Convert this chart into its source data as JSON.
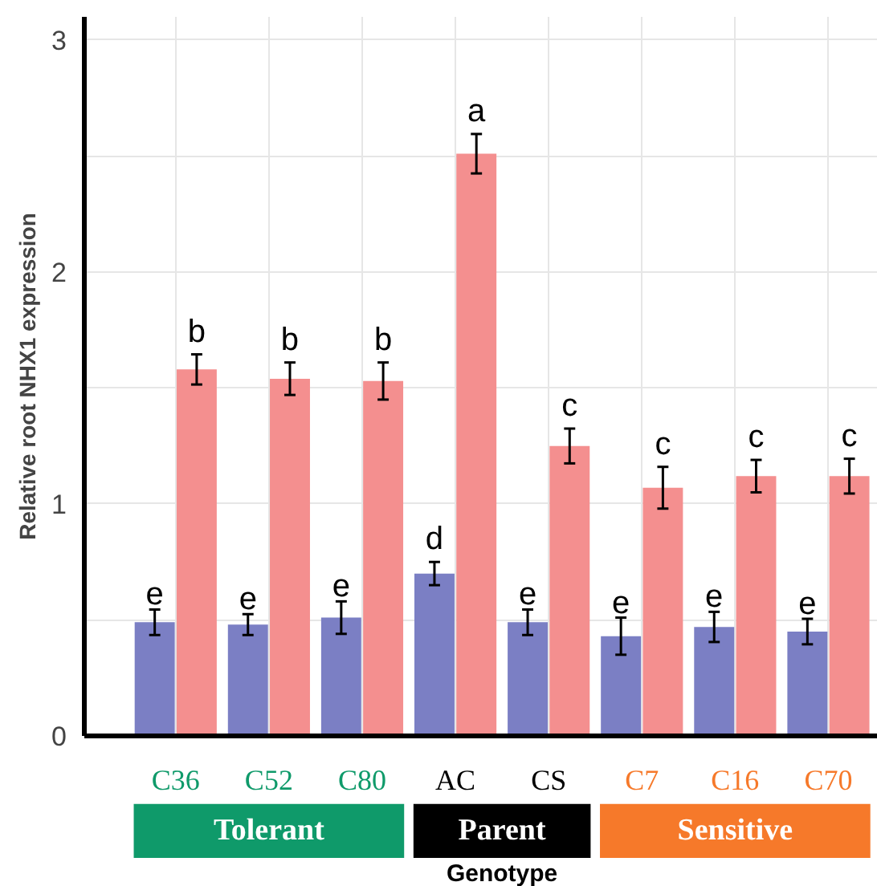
{
  "chart_data": {
    "type": "bar",
    "xlabel": "Genotype",
    "ylabel": "Relative root NHX1 expression",
    "categories": [
      "C36",
      "C52",
      "C80",
      "AC",
      "CS",
      "C7",
      "C16",
      "C70"
    ],
    "series": [
      {
        "color": "#7b7fc4",
        "values": [
          0.49,
          0.48,
          0.51,
          0.7,
          0.49,
          0.43,
          0.47,
          0.45
        ],
        "errors": [
          0.055,
          0.045,
          0.07,
          0.05,
          0.055,
          0.08,
          0.065,
          0.055
        ],
        "value_labels": [
          "e",
          "e",
          "e",
          "d",
          "e",
          "e",
          "e",
          "e"
        ]
      },
      {
        "color": "#f48f8f",
        "values": [
          1.58,
          1.54,
          1.53,
          2.51,
          1.25,
          1.07,
          1.12,
          1.12
        ],
        "errors": [
          0.065,
          0.07,
          0.08,
          0.085,
          0.075,
          0.09,
          0.07,
          0.075
        ],
        "value_labels": [
          "b",
          "b",
          "b",
          "a",
          "c",
          "c",
          "c",
          "c"
        ]
      }
    ],
    "annotations": [
      "Tolerant",
      "Parent",
      "Sensitive"
    ],
    "ylim": [
      0,
      3.1
    ],
    "yticks": [
      0,
      1,
      2,
      3
    ],
    "grid": true
  }
}
